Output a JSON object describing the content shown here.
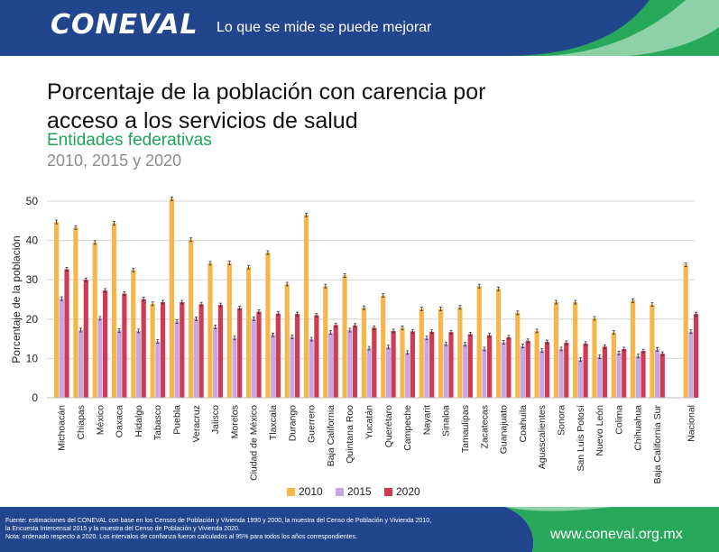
{
  "header": {
    "logo_text": "CONEVAL",
    "tagline": "Lo que se mide se puede mejorar"
  },
  "title": "Porcentaje de la población con carencia por acceso a los servicios de salud",
  "subtitle": "Entidades federativas",
  "years_label": "2010, 2015 y 2020",
  "colors": {
    "header_blue": "#22468e",
    "accent_green": "#27a85a",
    "series_2010": "#f7b64a",
    "series_2015": "#c6a7e6",
    "series_2020": "#cf3a55"
  },
  "chart_data": {
    "type": "bar",
    "ylabel": "Porcentaje de la población",
    "ylim": [
      0,
      50
    ],
    "yticks": [
      0,
      10,
      20,
      30,
      40,
      50
    ],
    "grid": true,
    "legend": "bottom-center",
    "categories": [
      "Michoacán",
      "Chiapas",
      "México",
      "Oaxaca",
      "Hidalgo",
      "Tabasco",
      "Puebla",
      "Veracruz",
      "Jalisco",
      "Morelos",
      "Ciudad de México",
      "Tlaxcala",
      "Durango",
      "Guerrero",
      "Baja California",
      "Quintana Roo",
      "Yucatán",
      "Querétaro",
      "Campeche",
      "Nayarit",
      "Sinaloa",
      "Tamaulipas",
      "Zacatecas",
      "Guanajuato",
      "Coahuila",
      "Aguascalientes",
      "Sonora",
      "San Luis Potosí",
      "Nuevo León",
      "Colima",
      "Chihuahua",
      "Baja California Sur",
      "Nacional"
    ],
    "series": [
      {
        "name": "2010",
        "values": [
          44.7,
          43.3,
          39.5,
          44.4,
          32.5,
          23.9,
          50.6,
          40.2,
          34.2,
          34.3,
          33.2,
          36.9,
          28.9,
          46.5,
          28.4,
          31.1,
          22.9,
          26.0,
          17.8,
          22.6,
          22.6,
          23.0,
          28.4,
          27.7,
          21.6,
          17.0,
          24.3,
          24.3,
          20.2,
          16.6,
          24.7,
          23.7,
          33.8
        ]
      },
      {
        "name": "2015",
        "values": [
          25.2,
          17.2,
          20.2,
          17.1,
          17.0,
          14.3,
          19.4,
          20.1,
          18.0,
          15.2,
          20.1,
          16.0,
          15.5,
          14.9,
          16.6,
          17.2,
          12.6,
          12.9,
          11.5,
          15.2,
          13.7,
          13.6,
          12.4,
          14.1,
          13.2,
          12.0,
          12.4,
          9.7,
          10.4,
          11.4,
          10.6,
          12.3,
          16.8
        ]
      },
      {
        "name": "2020",
        "values": [
          32.7,
          30.0,
          27.3,
          26.5,
          25.1,
          24.3,
          24.3,
          23.8,
          23.6,
          22.8,
          21.9,
          21.4,
          21.3,
          21.0,
          18.5,
          18.4,
          17.8,
          17.0,
          16.9,
          16.8,
          16.7,
          16.2,
          15.9,
          15.4,
          14.5,
          14.2,
          14.0,
          13.8,
          13.0,
          12.4,
          11.9,
          11.2,
          21.3
        ]
      }
    ]
  },
  "footer": {
    "source_lines": [
      "Fuente: estimaciones del CONEVAL con base en los Censos de Población y Vivienda 1990 y 2000, la muestra del Censo de Población y Vivienda 2010,",
      "la Encuesta Intercensal 2015 y la muestra del Censo de Población y Vivienda 2020.",
      "Nota: ordenado respecto a 2020. Los intervalos de confianza fueron calculados al 95% para todos los años correspondientes."
    ],
    "website": "www.coneval.org.mx"
  }
}
